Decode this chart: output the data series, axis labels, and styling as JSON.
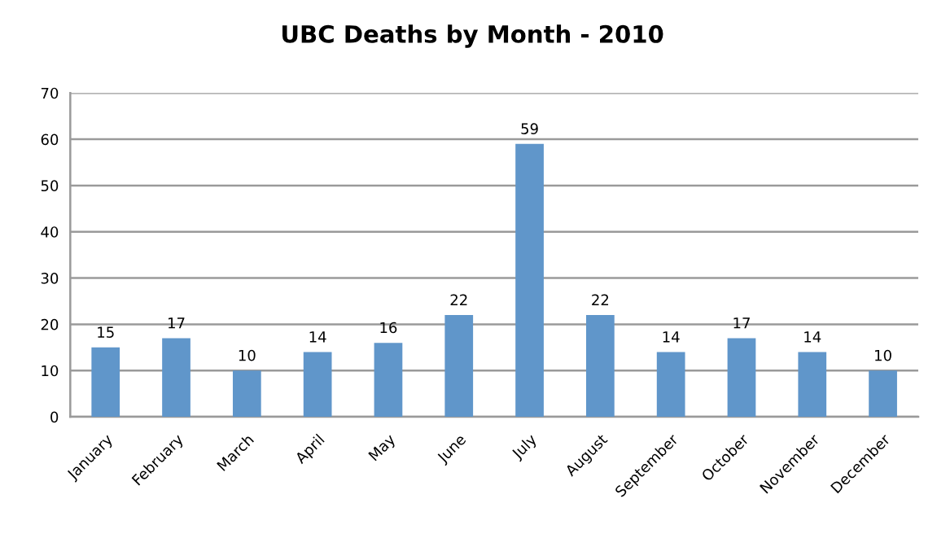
{
  "chart_data": {
    "type": "bar",
    "title": "UBC Deaths by Month - 2010",
    "categories": [
      "January",
      "February",
      "March",
      "April",
      "May",
      "June",
      "July",
      "August",
      "September",
      "October",
      "November",
      "December"
    ],
    "values": [
      15,
      17,
      10,
      14,
      16,
      22,
      59,
      22,
      14,
      17,
      14,
      10
    ],
    "color": "#6096ca",
    "ylim": [
      0,
      70
    ],
    "yticks": [
      0,
      10,
      20,
      30,
      40,
      50,
      60,
      70
    ],
    "grid": "y",
    "data_labels": true,
    "legend": false
  }
}
